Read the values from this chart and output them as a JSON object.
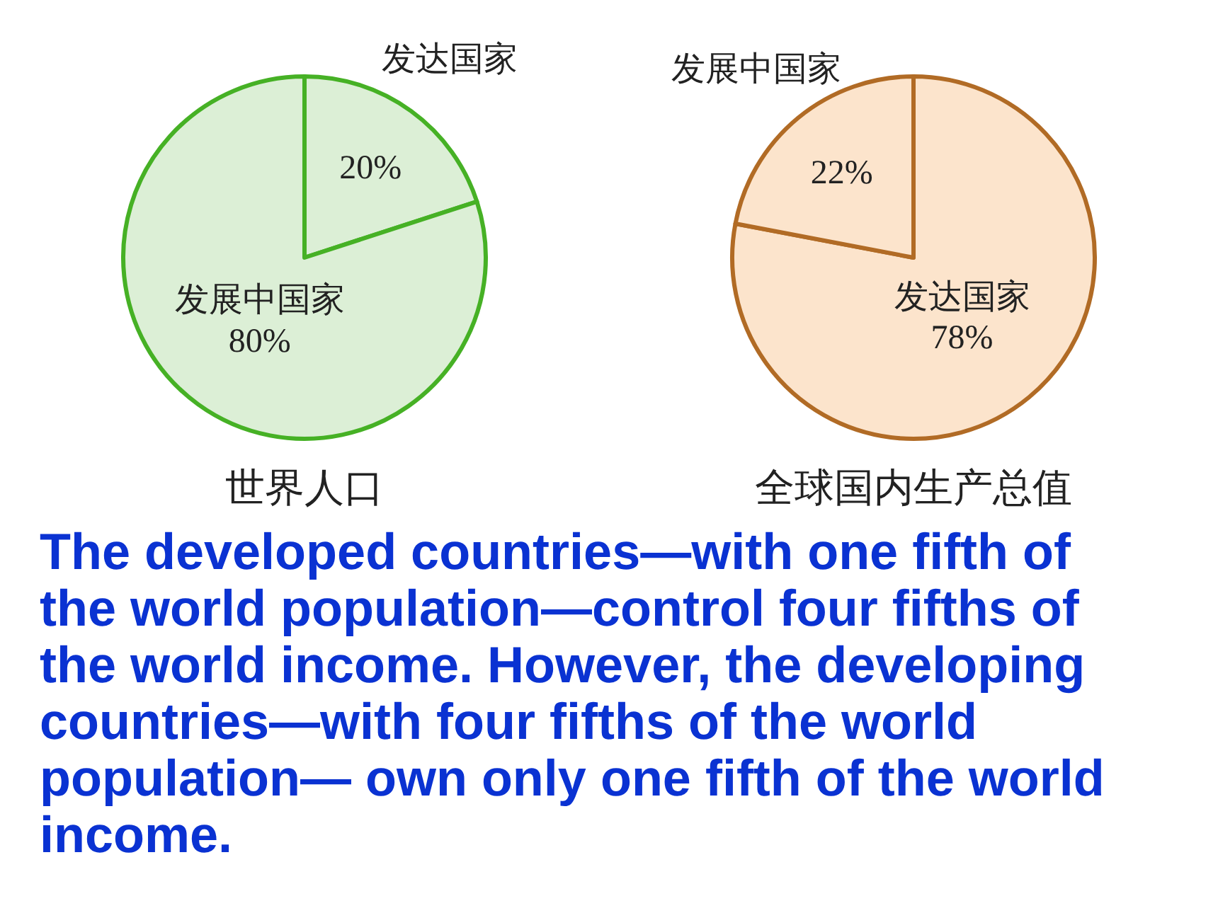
{
  "chart_data": [
    {
      "type": "pie",
      "title": "世界人口",
      "categories": [
        "发达国家",
        "发展中国家"
      ],
      "values": [
        20,
        80
      ],
      "value_labels": [
        "20%",
        "80%"
      ],
      "colors": [
        "#dcefd6",
        "#dcefd6"
      ]
    },
    {
      "type": "pie",
      "title": "全球国内生产总值",
      "categories": [
        "发达国家",
        "发展中国家"
      ],
      "values": [
        78,
        22
      ],
      "value_labels": [
        "78%",
        "22%"
      ],
      "colors": [
        "#fce4cc",
        "#fce4cc"
      ]
    },
    {
      "type": "other",
      "annotations": [
        "The developed countries—with one fifth of the world population—control four fifths of the world income. However, the developing countries—with four fifths of the world population— own only one fifth of the world income."
      ]
    }
  ]
}
